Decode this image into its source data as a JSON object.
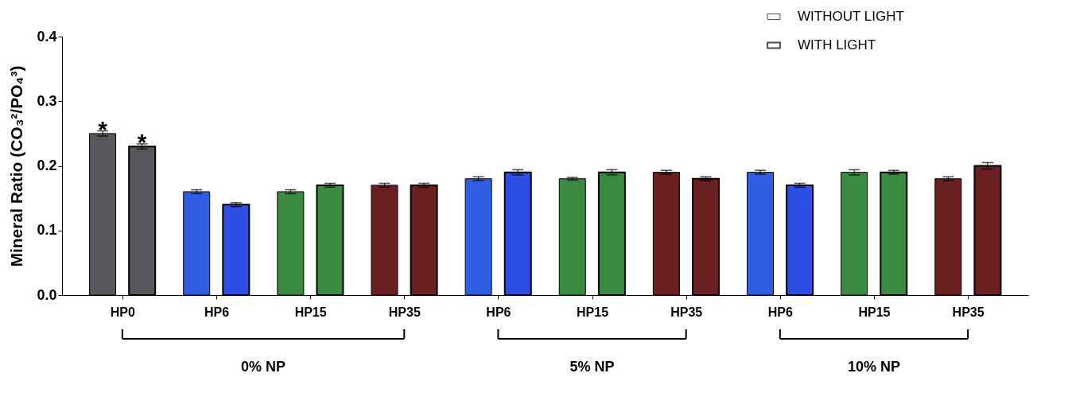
{
  "chart_data": {
    "type": "bar",
    "ylabel": "Mineral Ratio (CO₃²/PO₄³)",
    "categories": [
      "HP0",
      "HP6",
      "HP15",
      "HP35",
      "HP6",
      "HP15",
      "HP35",
      "HP6",
      "HP15",
      "HP35"
    ],
    "series": [
      {
        "name": "WITHOUT LIGHT",
        "colors": [
          "#56575b",
          "#2f5ee3",
          "#3a8b40",
          "#6a1f20",
          "#2f5ee3",
          "#3a8b40",
          "#6a1f20",
          "#2f5ee3",
          "#3a8b40",
          "#6a1f20"
        ],
        "values": [
          0.25,
          0.16,
          0.16,
          0.17,
          0.18,
          0.18,
          0.19,
          0.19,
          0.19,
          0.18
        ],
        "errors": [
          0.004,
          0.003,
          0.003,
          0.003,
          0.003,
          0.002,
          0.003,
          0.003,
          0.004,
          0.003
        ]
      },
      {
        "name": "WITH LIGHT",
        "colors": [
          "#56575b",
          "#2f4ee3",
          "#3a8b40",
          "#6a1f20",
          "#2f4ee3",
          "#3a8b40",
          "#6a1f20",
          "#2f4ee3",
          "#3a8b40",
          "#6a1f20"
        ],
        "values": [
          0.23,
          0.14,
          0.17,
          0.17,
          0.19,
          0.19,
          0.18,
          0.17,
          0.19,
          0.2
        ],
        "errors": [
          0.004,
          0.003,
          0.003,
          0.003,
          0.004,
          0.004,
          0.003,
          0.003,
          0.003,
          0.005
        ]
      }
    ],
    "ylim": [
      0,
      0.4
    ],
    "yticks": [
      {
        "value": 0,
        "label": "0.0"
      },
      0.1,
      0.2,
      0.3,
      0.4
    ],
    "grid": false,
    "legend": "top right",
    "annotations": [
      "*",
      "*",
      "0% NP",
      "5% NP",
      "10% NP"
    ]
  }
}
